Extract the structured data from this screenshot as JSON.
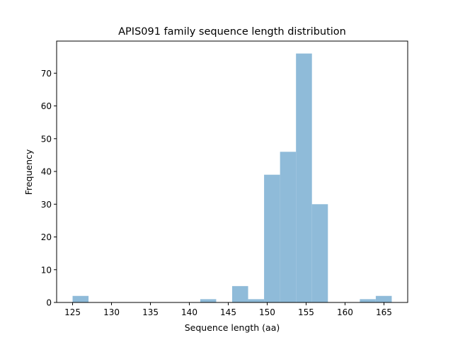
{
  "chart_data": {
    "type": "bar",
    "title": "APIS091 family sequence length distribution",
    "xlabel": "Sequence length (aa)",
    "ylabel": "Frequency",
    "bin_edges": [
      125,
      127.05,
      129.1,
      131.15,
      133.2,
      135.25,
      137.3,
      139.35,
      141.4,
      143.45,
      145.5,
      147.55,
      149.6,
      151.65,
      153.7,
      155.75,
      157.8,
      159.85,
      161.9,
      163.95,
      166
    ],
    "values": [
      2,
      0,
      0,
      0,
      0,
      0,
      0,
      0,
      1,
      0,
      5,
      1,
      39,
      46,
      76,
      30,
      0,
      0,
      1,
      2
    ],
    "xlim": [
      122.95,
      168.05
    ],
    "ylim": [
      0,
      79.8
    ],
    "xticks": [
      "125",
      "130",
      "135",
      "140",
      "145",
      "150",
      "155",
      "160",
      "165"
    ],
    "yticks": [
      "0",
      "10",
      "20",
      "30",
      "40",
      "50",
      "60",
      "70"
    ],
    "bar_color": "#8fbbd9",
    "grid": false
  }
}
